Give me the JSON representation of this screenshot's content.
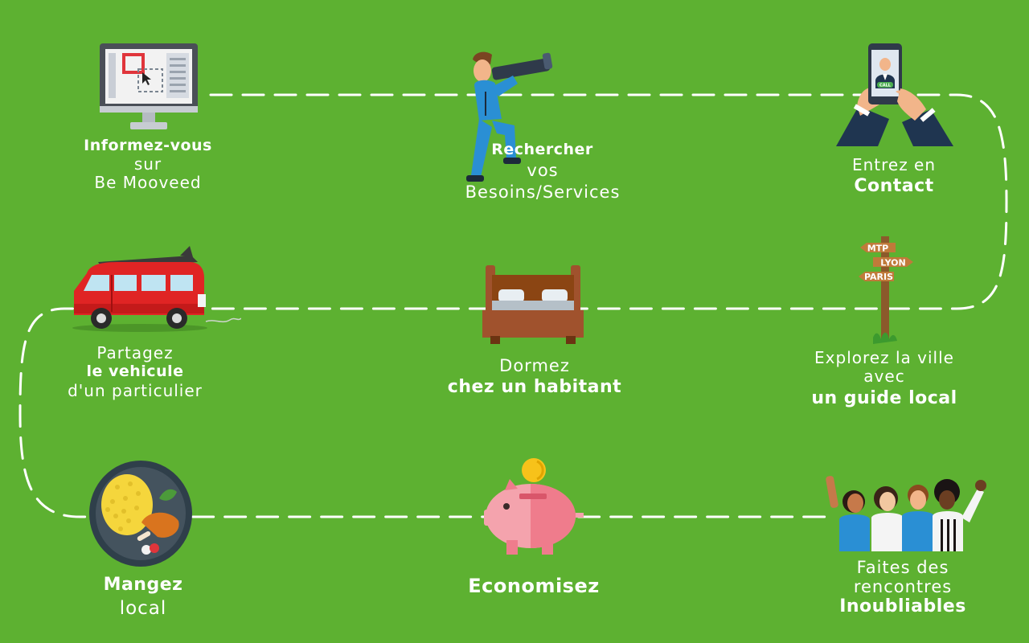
{
  "background": "#5db131",
  "path_color": "#ffffff",
  "steps": [
    {
      "id": "informez",
      "icon": "computer-monitor-icon",
      "lines": [
        "Informez-vous",
        "sur",
        "Be Mooveed"
      ]
    },
    {
      "id": "rechercher",
      "icon": "man-with-telescope-icon",
      "lines": [
        "Rechercher",
        "vos",
        "Besoins/Services"
      ]
    },
    {
      "id": "contact",
      "icon": "smartphone-call-icon",
      "phone_label": "CALL",
      "lines": [
        "Entrez en",
        "Contact"
      ]
    },
    {
      "id": "partagez",
      "icon": "red-van-icon",
      "lines": [
        "Partagez",
        "le vehicule",
        "d'un particulier"
      ]
    },
    {
      "id": "dormez",
      "icon": "bed-icon",
      "lines": [
        "Dormez",
        "chez un habitant"
      ]
    },
    {
      "id": "explorez",
      "icon": "signpost-icon",
      "sign_labels": [
        "MTP",
        "LYON",
        "PARIS"
      ],
      "lines": [
        "Explorez la ville",
        "avec",
        "un guide local"
      ]
    },
    {
      "id": "mangez",
      "icon": "food-plate-icon",
      "lines": [
        "Mangez",
        "local"
      ]
    },
    {
      "id": "economisez",
      "icon": "piggy-bank-icon",
      "lines": [
        "Economisez"
      ]
    },
    {
      "id": "rencontres",
      "icon": "group-of-people-icon",
      "lines": [
        "Faites des",
        "rencontres",
        "Inoubliables"
      ]
    }
  ]
}
